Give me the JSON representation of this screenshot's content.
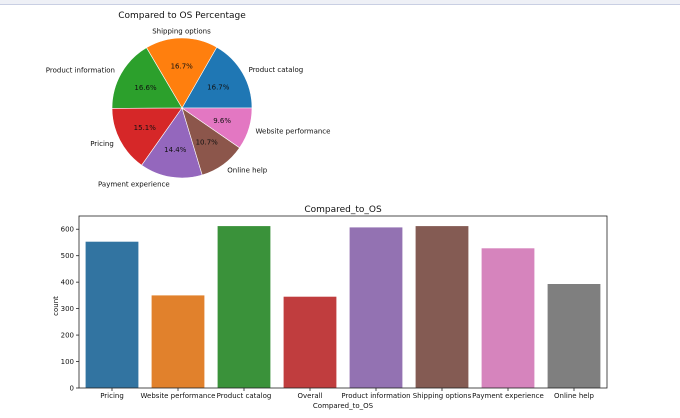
{
  "chart_data": [
    {
      "type": "pie",
      "title": "Compared to OS Percentage",
      "slices": [
        {
          "label": "Product catalog",
          "pct": 16.7,
          "pct_label": "16.7%",
          "color": "#1f77b4"
        },
        {
          "label": "Shipping options",
          "pct": 16.7,
          "pct_label": "16.7%",
          "color": "#ff7f0e"
        },
        {
          "label": "Product information",
          "pct": 16.6,
          "pct_label": "16.6%",
          "color": "#2ca02c"
        },
        {
          "label": "Pricing",
          "pct": 15.1,
          "pct_label": "15.1%",
          "color": "#d62728"
        },
        {
          "label": "Payment experience",
          "pct": 14.4,
          "pct_label": "14.4%",
          "color": "#9467bd"
        },
        {
          "label": "Online help",
          "pct": 10.7,
          "pct_label": "10.7%",
          "color": "#8c564b"
        },
        {
          "label": "Website performance",
          "pct": 9.6,
          "pct_label": "9.6%",
          "color": "#e377c2"
        }
      ],
      "start_angle": 0,
      "direction": "counterclockwise"
    },
    {
      "type": "bar",
      "title": "Compared_to_OS",
      "xlabel": "Compared_to_OS",
      "ylabel": "count",
      "ylim": [
        0,
        650
      ],
      "yticks": [
        0,
        100,
        200,
        300,
        400,
        500,
        600
      ],
      "categories": [
        "Pricing",
        "Website performance",
        "Product catalog",
        "Overall",
        "Product information",
        "Shipping options",
        "Payment experience",
        "Online help"
      ],
      "values": [
        553,
        350,
        612,
        345,
        607,
        612,
        528,
        393
      ],
      "colors": [
        "#3274a1",
        "#e1812c",
        "#3a923a",
        "#c03d3e",
        "#9372b2",
        "#845b53",
        "#d684bd",
        "#7f7f7f"
      ]
    }
  ]
}
